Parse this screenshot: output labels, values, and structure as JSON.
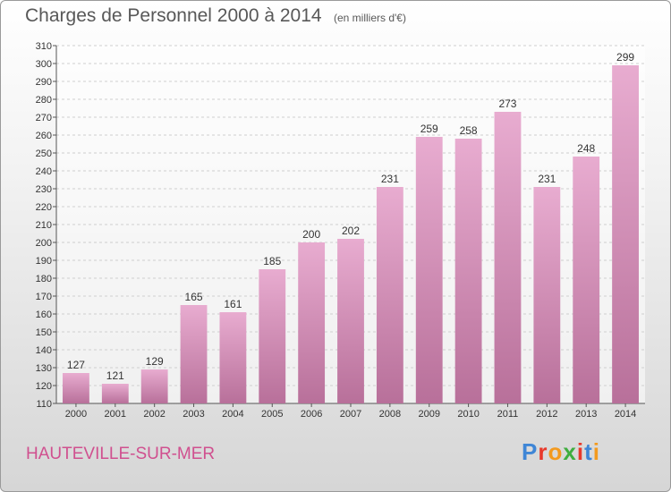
{
  "header": {
    "title": "Charges de Personnel 2000 à 2014",
    "unit_note": "(en milliers d'€)"
  },
  "footer": {
    "town_name": "HAUTEVILLE-SUR-MER",
    "logo_letters": [
      "P",
      "r",
      "o",
      "x",
      "i",
      "t",
      "i"
    ]
  },
  "colors": {
    "bar_top": "#e8acd0",
    "bar_bottom": "#b8709a",
    "town_text": "#d0508f",
    "logo_letters": [
      "#3f86d6",
      "#e8392b",
      "#f39a1e",
      "#3fae3f",
      "#e8392b",
      "#3f86d6",
      "#f39a1e"
    ]
  },
  "chart_data": {
    "type": "bar",
    "title": "Charges de Personnel 2000 à 2014",
    "subtitle": "(en milliers d'€)",
    "xlabel": "",
    "ylabel": "",
    "categories": [
      "2000",
      "2001",
      "2002",
      "2003",
      "2004",
      "2005",
      "2006",
      "2007",
      "2008",
      "2009",
      "2010",
      "2011",
      "2012",
      "2013",
      "2014"
    ],
    "values": [
      127,
      121,
      129,
      165,
      161,
      185,
      200,
      202,
      231,
      259,
      258,
      273,
      231,
      248,
      299
    ],
    "ylim": [
      110,
      310
    ],
    "ytick_step": 10,
    "grid": "horizontal",
    "data_labels": true
  }
}
